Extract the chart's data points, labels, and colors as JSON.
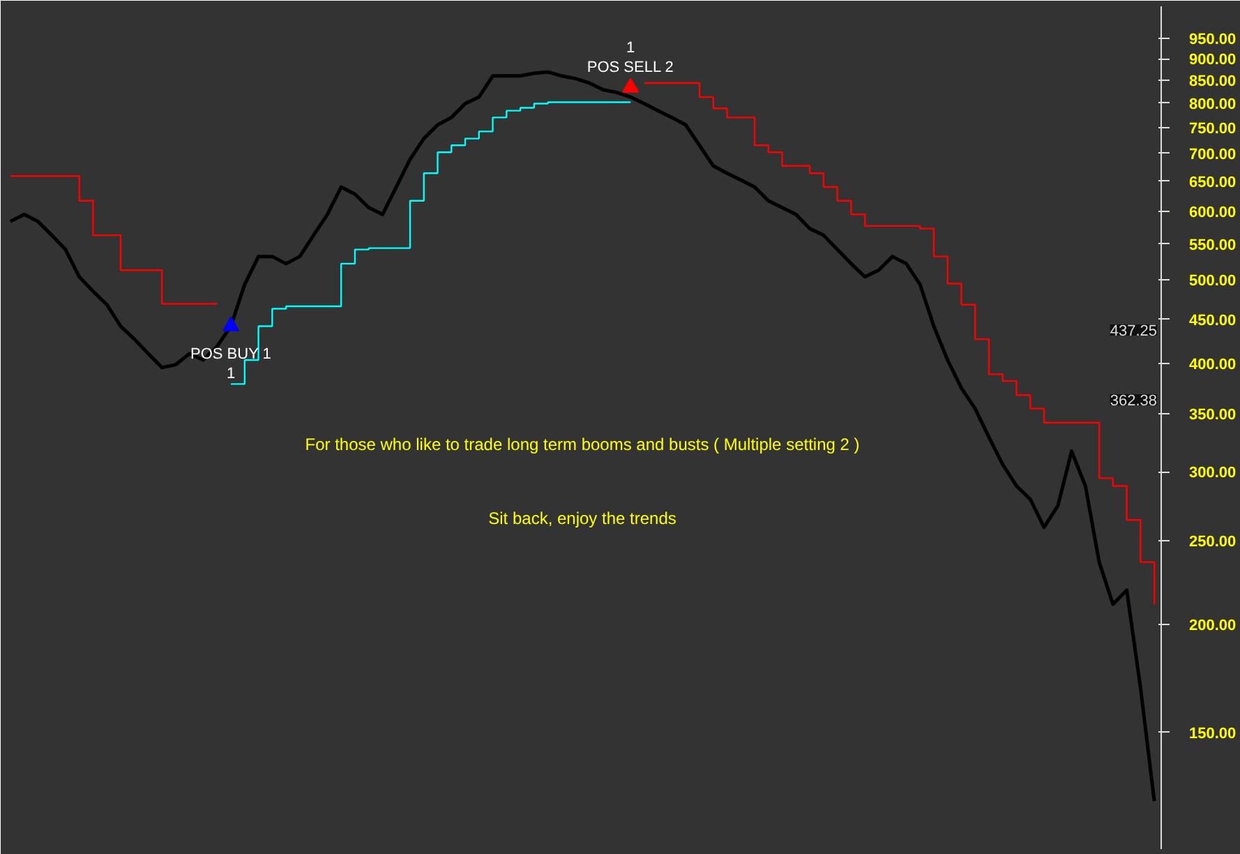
{
  "chart_data": {
    "type": "line",
    "log": "y",
    "grid": false,
    "ylim": [
      110,
      1035
    ],
    "yticks": [
      {
        "value": 150,
        "label": "150.00"
      },
      {
        "value": 200,
        "label": "200.00"
      },
      {
        "value": 250,
        "label": "250.00"
      },
      {
        "value": 300,
        "label": "300.00"
      },
      {
        "value": 350,
        "label": "350.00"
      },
      {
        "value": 400,
        "label": "400.00"
      },
      {
        "value": 450,
        "label": "450.00"
      },
      {
        "value": 500,
        "label": "500.00"
      },
      {
        "value": 550,
        "label": "550.00"
      },
      {
        "value": 600,
        "label": "600.00"
      },
      {
        "value": 650,
        "label": "650.00"
      },
      {
        "value": 700,
        "label": "700.00"
      },
      {
        "value": 750,
        "label": "750.00"
      },
      {
        "value": 800,
        "label": "800.00"
      },
      {
        "value": 850,
        "label": "850.00"
      },
      {
        "value": 900,
        "label": "900.00"
      },
      {
        "value": 950,
        "label": "950.00"
      }
    ],
    "tick_labels": "y",
    "categories": [
      null,
      null,
      null,
      null,
      null,
      null,
      null,
      null,
      null,
      null,
      null,
      null,
      null,
      null,
      null,
      null,
      null,
      null,
      null,
      null,
      null,
      null,
      null,
      null,
      null,
      null,
      null,
      null,
      null,
      null,
      null,
      null,
      null,
      null,
      null,
      null,
      null,
      null,
      null,
      null,
      null,
      null,
      null,
      null,
      null,
      null,
      null,
      null,
      null,
      null,
      null,
      null,
      null,
      null,
      null,
      null,
      null,
      null,
      null,
      null,
      null,
      null,
      null,
      null,
      null,
      null,
      null,
      null,
      null,
      null,
      null,
      null,
      null,
      null,
      null,
      null,
      null,
      null,
      null,
      null,
      null,
      null,
      null,
      null
    ],
    "series": [
      {
        "color": "#000000",
        "values": [
          584,
          595,
          584,
          563,
          542,
          504,
          485,
          468,
          442,
          427,
          411,
          396,
          399,
          411,
          404,
          419,
          442,
          494,
          532,
          532,
          522,
          532,
          563,
          595,
          640,
          628,
          606,
          595,
          640,
          689,
          728,
          755,
          770,
          799,
          813,
          860,
          860,
          860,
          866,
          869,
          860,
          854,
          844,
          829,
          823,
          813,
          799,
          784,
          770,
          755,
          715,
          677,
          664,
          652,
          640,
          617,
          606,
          595,
          573,
          563,
          542,
          522,
          504,
          513,
          532,
          522,
          494,
          442,
          404,
          375,
          355,
          329,
          306,
          289,
          279,
          259,
          274,
          317,
          289,
          236,
          211,
          219,
          169,
          125
        ]
      },
      {
        "type": "step",
        "color": "#ff0000",
        "values": [
          659,
          659,
          659,
          659,
          659,
          617,
          563,
          563,
          513,
          513,
          513,
          469,
          469,
          469,
          469,
          469,
          null,
          null,
          null,
          null,
          null,
          null,
          null,
          null,
          null,
          null,
          null,
          null,
          null,
          null,
          null,
          null,
          null,
          null,
          null,
          null,
          null,
          null,
          null,
          null,
          null,
          null,
          null,
          null,
          null,
          null,
          844,
          844,
          844,
          844,
          813,
          789,
          770,
          770,
          715,
          702,
          677,
          677,
          664,
          640,
          617,
          595,
          577,
          577,
          577,
          577,
          573,
          532,
          495,
          468,
          427,
          389,
          382,
          368,
          355,
          342,
          342,
          342,
          342,
          295,
          289,
          264,
          236,
          211
        ]
      },
      {
        "type": "step",
        "color": "#00ffff",
        "values": [
          null,
          null,
          null,
          null,
          null,
          null,
          null,
          null,
          null,
          null,
          null,
          null,
          null,
          null,
          null,
          null,
          379,
          404,
          442,
          463,
          466,
          466,
          466,
          466,
          522,
          542,
          544,
          544,
          544,
          617,
          664,
          702,
          715,
          728,
          742,
          770,
          784,
          790,
          799,
          802,
          802,
          802,
          802,
          802,
          802,
          802,
          null,
          null,
          null,
          null,
          null,
          null,
          null,
          null,
          null,
          null,
          null,
          null,
          null,
          null,
          null,
          null,
          null,
          null,
          null,
          null,
          null,
          null,
          null,
          null,
          null,
          null,
          null,
          null,
          null,
          null,
          null,
          null,
          null,
          null,
          null,
          null,
          null,
          null
        ]
      },
      {
        "type": "scatter",
        "marker": "triangle",
        "color": "#0000ff",
        "values": [
          null,
          null,
          null,
          null,
          null,
          null,
          null,
          null,
          null,
          null,
          null,
          null,
          null,
          null,
          null,
          null,
          442,
          null,
          null,
          null,
          null,
          null,
          null,
          null,
          null,
          null,
          null,
          null,
          null,
          null,
          null,
          null,
          null,
          null,
          null,
          null,
          null,
          null,
          null,
          null,
          null,
          null,
          null,
          null,
          null,
          null,
          null,
          null,
          null,
          null,
          null,
          null,
          null,
          null,
          null,
          null,
          null,
          null,
          null,
          null,
          null,
          null,
          null,
          null,
          null,
          null,
          null,
          null,
          null,
          null,
          null,
          null,
          null,
          null,
          null,
          null,
          null,
          null,
          null,
          null,
          null,
          null,
          null,
          null
        ],
        "value_labels": [
          null,
          null,
          null,
          null,
          null,
          null,
          null,
          null,
          null,
          null,
          null,
          null,
          null,
          null,
          null,
          null,
          "POS BUY 1\n1",
          null,
          null,
          null,
          null,
          null,
          null,
          null,
          null,
          null,
          null,
          null,
          null,
          null,
          null,
          null,
          null,
          null,
          null,
          null,
          null,
          null,
          null,
          null,
          null,
          null,
          null,
          null,
          null,
          null,
          null,
          null,
          null,
          null,
          null,
          null,
          null,
          null,
          null,
          null,
          null,
          null,
          null,
          null,
          null,
          null,
          null,
          null,
          null,
          null,
          null,
          null,
          null,
          null,
          null,
          null,
          null,
          null,
          null,
          null,
          null,
          null,
          null,
          null,
          null,
          null,
          null,
          null
        ]
      },
      {
        "type": "scatter",
        "marker": "triangle",
        "color": "#ff0000",
        "values": [
          null,
          null,
          null,
          null,
          null,
          null,
          null,
          null,
          null,
          null,
          null,
          null,
          null,
          null,
          null,
          null,
          null,
          null,
          null,
          null,
          null,
          null,
          null,
          null,
          null,
          null,
          null,
          null,
          null,
          null,
          null,
          null,
          null,
          null,
          null,
          null,
          null,
          null,
          null,
          null,
          null,
          null,
          null,
          null,
          null,
          834,
          null,
          null,
          null,
          null,
          null,
          null,
          null,
          null,
          null,
          null,
          null,
          null,
          null,
          null,
          null,
          null,
          null,
          null,
          null,
          null,
          null,
          null,
          null,
          null,
          null,
          null,
          null,
          null,
          null,
          null,
          null,
          null,
          null,
          null,
          null,
          null,
          null,
          null
        ],
        "value_labels": [
          null,
          null,
          null,
          null,
          null,
          null,
          null,
          null,
          null,
          null,
          null,
          null,
          null,
          null,
          null,
          null,
          null,
          null,
          null,
          null,
          null,
          null,
          null,
          null,
          null,
          null,
          null,
          null,
          null,
          null,
          null,
          null,
          null,
          null,
          null,
          null,
          null,
          null,
          null,
          null,
          null,
          null,
          null,
          null,
          null,
          "1\nPOS SELL 2",
          null,
          null,
          null,
          null,
          null,
          null,
          null,
          null,
          null,
          null,
          null,
          null,
          null,
          null,
          null,
          null,
          null,
          null,
          null,
          null,
          null,
          null,
          null,
          null,
          null,
          null,
          null,
          null,
          null,
          null,
          null,
          null,
          null,
          null,
          null,
          null,
          null,
          null
        ]
      }
    ],
    "annotations": [
      "For those who like to trade long term booms and busts ( Multiple setting 2 )",
      "Sit back, enjoy the trends",
      "437.25",
      "362.38"
    ]
  }
}
